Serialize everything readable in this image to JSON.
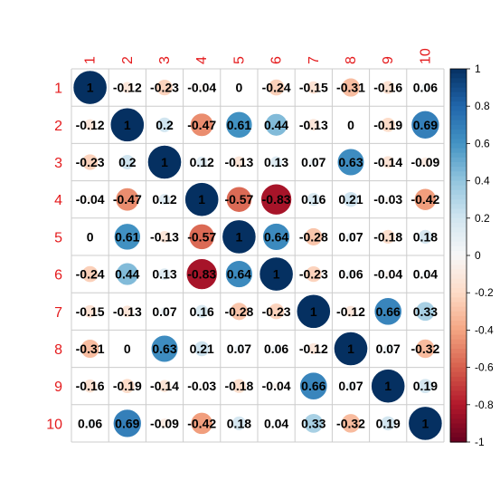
{
  "chart_data": {
    "type": "heatmap",
    "title": "",
    "xlabel": "",
    "ylabel": "",
    "row_labels": [
      "1",
      "2",
      "3",
      "4",
      "5",
      "6",
      "7",
      "8",
      "9",
      "10"
    ],
    "col_labels": [
      "1",
      "2",
      "3",
      "4",
      "5",
      "6",
      "7",
      "8",
      "9",
      "10"
    ],
    "values": [
      [
        1,
        -0.12,
        -0.23,
        -0.04,
        0,
        -0.24,
        -0.15,
        -0.31,
        -0.16,
        0.06
      ],
      [
        -0.12,
        1,
        0.2,
        -0.47,
        0.61,
        0.44,
        -0.13,
        0,
        -0.19,
        0.69
      ],
      [
        -0.23,
        0.2,
        1,
        0.12,
        -0.13,
        0.13,
        0.07,
        0.63,
        -0.14,
        -0.09
      ],
      [
        -0.04,
        -0.47,
        0.12,
        1,
        -0.57,
        -0.83,
        0.16,
        0.21,
        -0.03,
        -0.42
      ],
      [
        0,
        0.61,
        -0.13,
        -0.57,
        1,
        0.64,
        -0.28,
        0.07,
        -0.18,
        0.18
      ],
      [
        -0.24,
        0.44,
        0.13,
        -0.83,
        0.64,
        1,
        -0.23,
        0.06,
        -0.04,
        0.04
      ],
      [
        -0.15,
        -0.13,
        0.07,
        0.16,
        -0.28,
        -0.23,
        1,
        -0.12,
        0.66,
        0.33
      ],
      [
        -0.31,
        0,
        0.63,
        0.21,
        0.07,
        0.06,
        -0.12,
        1,
        0.07,
        -0.32
      ],
      [
        -0.16,
        -0.19,
        -0.14,
        -0.03,
        -0.18,
        -0.04,
        0.66,
        0.07,
        1,
        0.19
      ],
      [
        0.06,
        0.69,
        -0.09,
        -0.42,
        0.18,
        0.04,
        0.33,
        -0.32,
        0.19,
        1
      ]
    ],
    "value_labels": [
      [
        "1",
        "-0.12",
        "-0.23",
        "-0.04",
        "0",
        "-0.24",
        "-0.15",
        "-0.31",
        "-0.16",
        "0.06"
      ],
      [
        "-0.12",
        "1",
        "0.2",
        "-0.47",
        "0.61",
        "0.44",
        "-0.13",
        "0",
        "-0.19",
        "0.69"
      ],
      [
        "-0.23",
        "0.2",
        "1",
        "0.12",
        "-0.13",
        "0.13",
        "0.07",
        "0.63",
        "-0.14",
        "-0.09"
      ],
      [
        "-0.04",
        "-0.47",
        "0.12",
        "1",
        "-0.57",
        "-0.83",
        "0.16",
        "0.21",
        "-0.03",
        "-0.42"
      ],
      [
        "0",
        "0.61",
        "-0.13",
        "-0.57",
        "1",
        "0.64",
        "-0.28",
        "0.07",
        "-0.18",
        "0.18"
      ],
      [
        "-0.24",
        "0.44",
        "0.13",
        "-0.83",
        "0.64",
        "1",
        "-0.23",
        "0.06",
        "-0.04",
        "0.04"
      ],
      [
        "-0.15",
        "-0.13",
        "0.07",
        "0.16",
        "-0.28",
        "-0.23",
        "1",
        "-0.12",
        "0.66",
        "0.33"
      ],
      [
        "-0.31",
        "0",
        "0.63",
        "0.21",
        "0.07",
        "0.06",
        "-0.12",
        "1",
        "0.07",
        "-0.32"
      ],
      [
        "-0.16",
        "-0.19",
        "-0.14",
        "-0.03",
        "-0.18",
        "-0.04",
        "0.66",
        "0.07",
        "1",
        "0.19"
      ],
      [
        "0.06",
        "0.69",
        "-0.09",
        "-0.42",
        "0.18",
        "0.04",
        "0.33",
        "-0.32",
        "0.19",
        "1"
      ]
    ],
    "colorbar": {
      "range": [
        -1,
        1
      ],
      "tick_labels": [
        "1",
        "0.8",
        "0.6",
        "0.4",
        "0.2",
        "0",
        "-0.2",
        "-0.4",
        "-0.6",
        "-0.8",
        "-1"
      ],
      "tick_values": [
        1,
        0.8,
        0.6,
        0.4,
        0.2,
        0,
        -0.2,
        -0.4,
        -0.6,
        -0.8,
        -1
      ],
      "placement": "right"
    },
    "colors": {
      "negative_end": "#67001f",
      "neutral": "#f7f7f7",
      "positive_end": "#053061",
      "tick_label_color": "#e41a1c",
      "grid_color": "#cccccc",
      "value_text_color": "#000000"
    },
    "encoding": "circle area proportional to absolute correlation, color by sign and magnitude"
  }
}
